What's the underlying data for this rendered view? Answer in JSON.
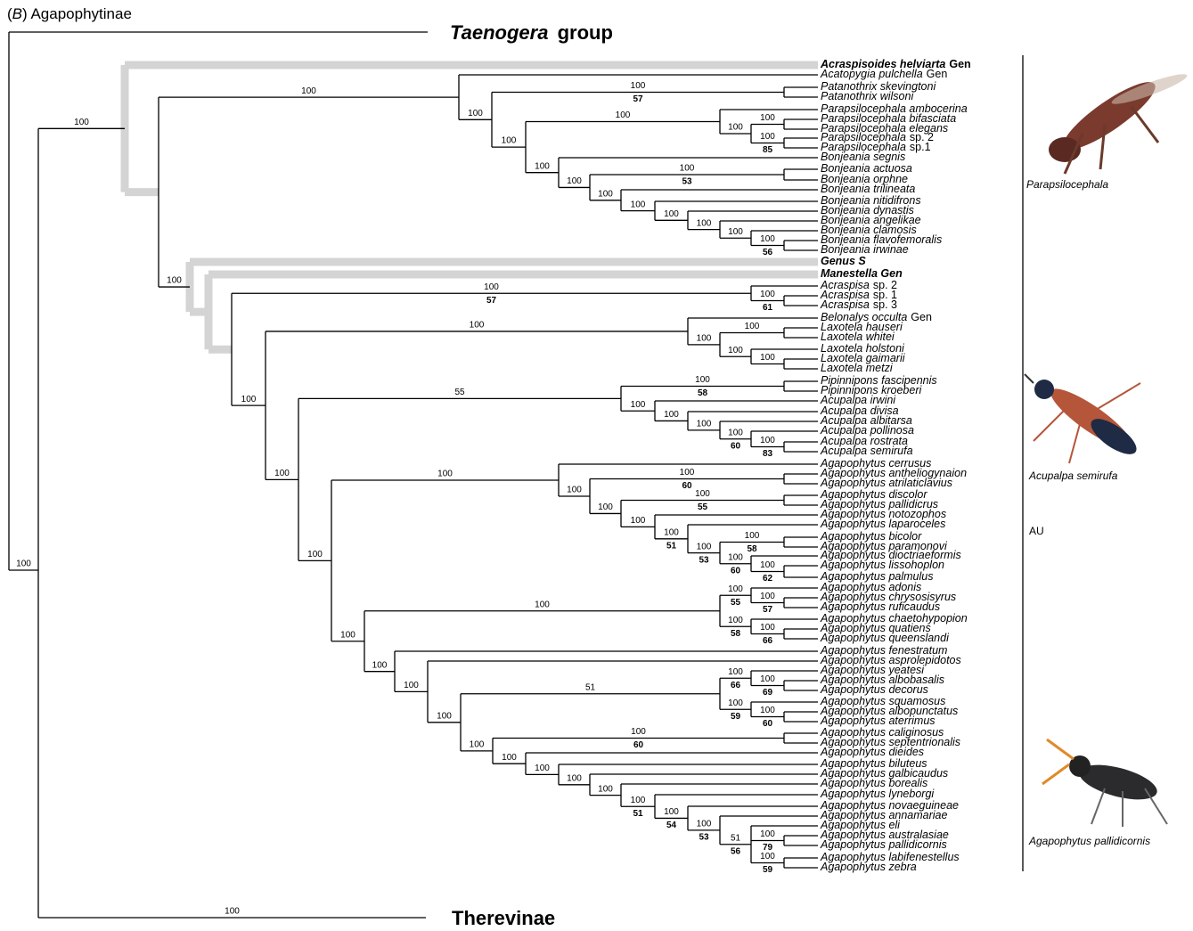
{
  "header": {
    "panel": [
      "(",
      "B",
      ") Agapophytinae"
    ]
  },
  "outgroups": [
    {
      "italic": "Taenogera",
      "roman": " group"
    },
    {
      "roman": "Therevinae"
    }
  ],
  "leaves": [
    {
      "italic": "Acraspisoides helviarta",
      "roman": "Gen",
      "bold": true
    },
    {
      "italic": "Acatopygia pulchella",
      "roman": "Gen"
    },
    {
      "italic": "Patanothrix skevingtoni"
    },
    {
      "italic": "Patanothrix wilsoni"
    },
    {
      "italic": "Parapsilocephala ambocerina"
    },
    {
      "italic": "Parapsilocephala bifasciata"
    },
    {
      "italic": "Parapsilocephala elegans"
    },
    {
      "italic": "Parapsilocephala",
      "roman": "sp. 2"
    },
    {
      "italic": "Parapsilocephala",
      "roman": "sp.1"
    },
    {
      "italic": "Bonjeania segnis"
    },
    {
      "italic": "Bonjeania actuosa"
    },
    {
      "italic": "Bonjeania orphne"
    },
    {
      "italic": "Bonjeania trilineata"
    },
    {
      "italic": "Bonjeania nitidifrons"
    },
    {
      "italic": "Bonjeania dynastis"
    },
    {
      "italic": "Bonjeania angelikae"
    },
    {
      "italic": "Bonjeania clamosis"
    },
    {
      "italic": "Bonjeania flavofemoralis"
    },
    {
      "italic": "Bonjeania irwinae"
    },
    {
      "italic": "Genus S",
      "bold": true
    },
    {
      "italic": "Manestella Gen",
      "bold": true
    },
    {
      "italic": "Acraspisa",
      "roman": "sp. 2"
    },
    {
      "italic": "Acraspisa",
      "roman": "sp. 1"
    },
    {
      "italic": "Acraspisa",
      "roman": "sp. 3"
    },
    {
      "italic": "Belonalys occulta",
      "roman": "Gen"
    },
    {
      "italic": "Laxotela hauseri"
    },
    {
      "italic": "Laxotela whitei"
    },
    {
      "italic": "Laxotela holstoni"
    },
    {
      "italic": "Laxotela gaimarii"
    },
    {
      "italic": "Laxotela metzi"
    },
    {
      "italic": "Pipinnipons fascipennis"
    },
    {
      "italic": "Pipinnipons kroeberi"
    },
    {
      "italic": "Acupalpa irwini"
    },
    {
      "italic": "Acupalpa divisa"
    },
    {
      "italic": "Acupalpa albitarsa"
    },
    {
      "italic": "Acupalpa pollinosa"
    },
    {
      "italic": "Acupalpa rostrata"
    },
    {
      "italic": "Acupalpa semirufa"
    },
    {
      "italic": "Agapophytus cerrusus"
    },
    {
      "italic": "Agapophytus antheliogynaion"
    },
    {
      "italic": "Agapophytus atrilaticlavius"
    },
    {
      "italic": "Agapophytus discolor"
    },
    {
      "italic": "Agapophytus pallidicrus"
    },
    {
      "italic": "Agapophytus notozophos"
    },
    {
      "italic": "Agapophytus laparoceles"
    },
    {
      "italic": "Agapophytus bicolor"
    },
    {
      "italic": "Agapophytus paramonovi"
    },
    {
      "italic": "Agapophytus dioctriaeformis"
    },
    {
      "italic": "Agapophytus lissohoplon"
    },
    {
      "italic": "Agapophytus palmulus"
    },
    {
      "italic": "Agapophytus adonis"
    },
    {
      "italic": "Agapophytus chrysosisyrus"
    },
    {
      "italic": "Agapophytus ruficaudus"
    },
    {
      "italic": "Agapophytus chaetohypopion"
    },
    {
      "italic": "Agapophytus quatiens"
    },
    {
      "italic": "Agapophytus queenslandi"
    },
    {
      "italic": "Agapophytus fenestratum"
    },
    {
      "italic": "Agapophytus asprolepidotos"
    },
    {
      "italic": "Agapophytus yeatesi"
    },
    {
      "italic": "Agapophytus albobasalis"
    },
    {
      "italic": "Agapophytus decorus"
    },
    {
      "italic": "Agapophytus squamosus"
    },
    {
      "italic": "Agapophytus albopunctatus"
    },
    {
      "italic": "Agapophytus aterrimus"
    },
    {
      "italic": "Agapophytus caliginosus"
    },
    {
      "italic": "Agapophytus septentrionalis"
    },
    {
      "italic": "Agapophytus dieides"
    },
    {
      "italic": "Agapophytus biluteus"
    },
    {
      "italic": "Agapophytus galbicaudus"
    },
    {
      "italic": "Agapophytus borealis"
    },
    {
      "italic": "Agapophytus lyneborgi"
    },
    {
      "italic": "Agapophytus novaeguineae"
    },
    {
      "italic": "Agapophytus annamariae"
    },
    {
      "italic": "Agapophytus eli"
    },
    {
      "italic": "Agapophytus australasiae"
    },
    {
      "italic": "Agapophytus pallidicornis"
    },
    {
      "italic": "Agapophytus labifenestellus"
    },
    {
      "italic": "Agapophytus zebra"
    }
  ],
  "supports": [
    {
      "above": 100
    },
    {
      "above": 100
    },
    {
      "above": 100
    },
    {
      "above": 100
    },
    {
      "above": 100,
      "below": 57
    },
    {
      "above": 100
    },
    {
      "above": 100
    },
    {
      "above": 100
    },
    {
      "above": 100
    },
    {
      "above": 100,
      "below": 85
    },
    {
      "above": 100
    },
    {
      "above": 100
    },
    {
      "above": 100,
      "below": 53
    },
    {
      "above": 100
    },
    {
      "above": 100
    },
    {
      "above": 100
    },
    {
      "above": 100
    },
    {
      "above": 100
    },
    {
      "above": 100,
      "below": 56
    },
    {
      "above": 100
    },
    {
      "above": 100,
      "below": 57
    },
    {
      "above": 100,
      "below": 61
    },
    {
      "above": 100
    },
    {
      "above": 100
    },
    {
      "above": 100
    },
    {
      "above": 100
    },
    {
      "above": 100
    },
    {
      "above": 100
    },
    {
      "above": 100
    },
    {
      "above": 55
    },
    {
      "above": 100,
      "below": 58
    },
    {
      "above": 100
    },
    {
      "above": 100
    },
    {
      "above": 100
    },
    {
      "above": 100,
      "below": 60
    },
    {
      "above": 100,
      "below": 83
    },
    {
      "above": 100
    },
    {
      "above": 100
    },
    {
      "above": 100
    },
    {
      "above": 100,
      "below": 60
    },
    {
      "above": 100
    },
    {
      "above": 100,
      "below": 55
    },
    {
      "above": 100
    },
    {
      "above": 100,
      "below": 51
    },
    {
      "above": 100,
      "below": 53
    },
    {
      "above": 100,
      "below": 58
    },
    {
      "above": 100,
      "below": 60
    },
    {
      "above": 100,
      "below": 62
    },
    {
      "above": 100
    },
    {
      "above": 100
    },
    {
      "above": 100,
      "below": 55
    },
    {
      "above": 100,
      "below": 57
    },
    {
      "above": 100,
      "below": 58
    },
    {
      "above": 100,
      "below": 66
    },
    {
      "above": 100
    },
    {
      "above": 100
    },
    {
      "above": 100
    },
    {
      "above": 51
    },
    {
      "above": 100,
      "below": 66
    },
    {
      "above": 100,
      "below": 69
    },
    {
      "above": 100,
      "below": 59
    },
    {
      "above": 100,
      "below": 60
    },
    {
      "above": 100
    },
    {
      "above": 100,
      "below": 60
    },
    {
      "above": 100
    },
    {
      "above": 100
    },
    {
      "above": 100
    },
    {
      "above": 100
    },
    {
      "above": 100,
      "below": 51
    },
    {
      "above": 100,
      "below": 54
    },
    {
      "above": 100,
      "below": 53
    },
    {
      "above": 51,
      "below": 56
    },
    {
      "above": 100,
      "below": 79
    },
    {
      "above": 100,
      "below": 59
    },
    {
      "above": 100
    }
  ],
  "side": {
    "region": "AU",
    "images": [
      "Parapsilocephala",
      "Acupalpa semirufa",
      "Agapophytus pallidicornis"
    ]
  }
}
